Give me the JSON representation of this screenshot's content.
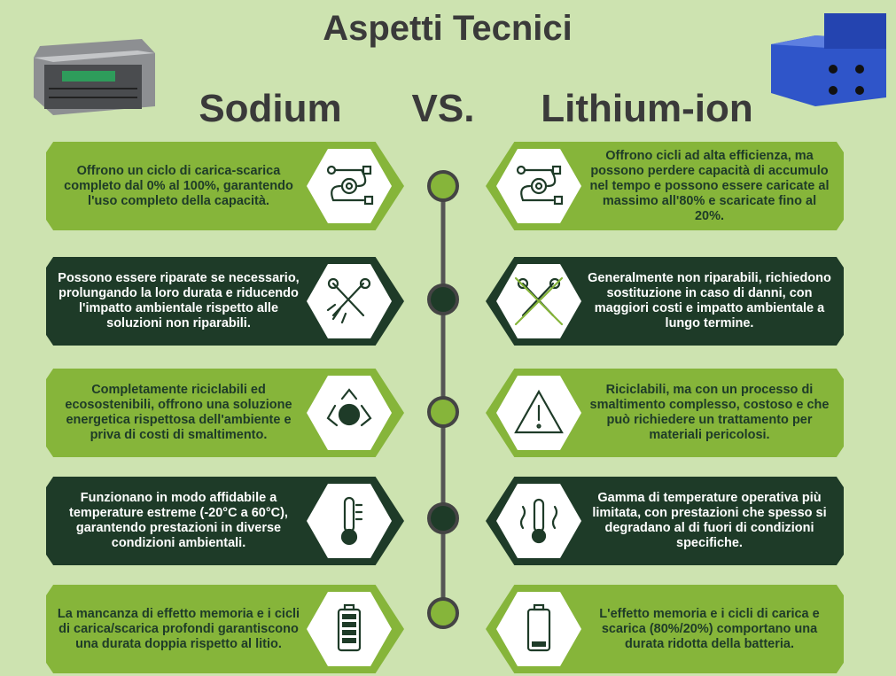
{
  "title": "Aspetti Tecnici",
  "left_heading": "Sodium",
  "vs": "VS.",
  "right_heading": "Lithium-ion",
  "rows": [
    {
      "sodium": "Offrono un ciclo di carica-scarica completo dal 0% al 100%, garantendo l'uso completo della capacità.",
      "lithium": "Offrono cicli ad alta efficienza, ma possono perdere capacità di accumulo nel tempo e possono essere caricate al massimo all'80% e scaricate fino al 20%."
    },
    {
      "sodium": "Possono essere riparate se necessario, prolungando la loro durata e riducendo l'impatto ambientale rispetto alle soluzioni non riparabili.",
      "lithium": "Generalmente non riparabili, richiedono sostituzione in caso di danni, con maggiori costi e impatto ambientale a lungo termine."
    },
    {
      "sodium": "Completamente riciclabili ed ecosostenibili, offrono una soluzione energetica rispettosa dell'ambiente e priva di costi di smaltimento.",
      "lithium": "Riciclabili, ma con un processo di smaltimento complesso, costoso e che può richiedere un trattamento per materiali pericolosi."
    },
    {
      "sodium": "Funzionano in modo affidabile a temperature estreme (-20°C a 60°C), garantendo prestazioni in diverse condizioni ambientali.",
      "lithium": "Gamma di temperature operativa più limitata, con prestazioni che spesso si degradano al di fuori di condizioni specifiche."
    },
    {
      "sodium": "La mancanza di effetto memoria e i cicli di carica/scarica profondi garantiscono una durata doppia rispetto al litio.",
      "lithium": "L'effetto memoria e i cicli di carica e scarica (80%/20%) comportano una durata ridotta della batteria."
    }
  ]
}
